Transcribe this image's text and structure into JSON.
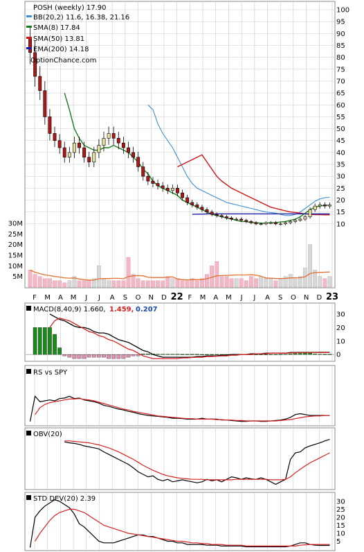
{
  "chart_data": [
    {
      "type": "candlestick",
      "title": "POSH (weekly) 17.90",
      "legend": [
        {
          "label": "BB(20,2) 11.6, 16.38, 21.16",
          "color": "#3a8fd6"
        },
        {
          "label": "SMA(8) 17.84",
          "color": "#1a7a1a"
        },
        {
          "label": "SMA(50) 13.81",
          "color": "#cc1111"
        },
        {
          "label": "EMA(200) 14.18",
          "color": "#1a1aa8"
        }
      ],
      "watermark": "OptionChance.com",
      "ylim": [
        5,
        100
      ],
      "y_ticks": [
        10,
        15,
        20,
        25,
        30,
        35,
        40,
        45,
        50,
        55,
        60,
        65,
        70,
        75,
        80,
        85,
        90,
        95,
        100
      ],
      "volume_ticks": [
        "30M",
        "25M",
        "20M",
        "15M",
        "10M",
        "5M"
      ],
      "volume_tick_values": [
        30,
        25,
        20,
        15,
        10,
        5
      ],
      "x_tick_labels": [
        "F",
        "M",
        "A",
        "M",
        "J",
        "J",
        "A",
        "S",
        "O",
        "N",
        "D",
        "22",
        "F",
        "M",
        "A",
        "M",
        "J",
        "J",
        "A",
        "S",
        "O",
        "N",
        "D",
        "23"
      ],
      "close": [
        82,
        72,
        66,
        55,
        48,
        45,
        42,
        38,
        40,
        44,
        42,
        38,
        36,
        40,
        43,
        46,
        48,
        46,
        44,
        42,
        40,
        38,
        34,
        30,
        28,
        27,
        26,
        25,
        24,
        25,
        23,
        21,
        19,
        18,
        17,
        16,
        15,
        14,
        13.5,
        13,
        12.5,
        12,
        12,
        11.5,
        11,
        10.5,
        10,
        10,
        10.5,
        10.5,
        10,
        10,
        10.5,
        11,
        11.5,
        12,
        13,
        16,
        17.5,
        18,
        17.5,
        17.9
      ],
      "series": [
        {
          "name": "BB(20,2)",
          "values": [
            null,
            null,
            null,
            null,
            null,
            null,
            null,
            null,
            null,
            null,
            null,
            null,
            null,
            null,
            null,
            null,
            null,
            null,
            null,
            null,
            null,
            null,
            null,
            null,
            60,
            58,
            52,
            48,
            45,
            42,
            38,
            34,
            30,
            27,
            25,
            24,
            23,
            22,
            21,
            20,
            19,
            18.5,
            18,
            17.5,
            17,
            16.5,
            16,
            15.5,
            15,
            14.8,
            14.5,
            14,
            13.5,
            13.5,
            14,
            15,
            16.5,
            18,
            19.5,
            20.5,
            21,
            21.16
          ]
        },
        {
          "name": "SMA(8)",
          "values": [
            null,
            null,
            null,
            null,
            null,
            null,
            null,
            65,
            58,
            50,
            46,
            43,
            42,
            41,
            41,
            42,
            42,
            43,
            42,
            41,
            40,
            38,
            36,
            33,
            31,
            28,
            26,
            25,
            24,
            23,
            22,
            20,
            19,
            18,
            17,
            16,
            15,
            14,
            13.5,
            13,
            12.5,
            12,
            11.5,
            11,
            11,
            10.5,
            10.5,
            10.3,
            10.3,
            10.5,
            10.5,
            10.8,
            11,
            11.5,
            12,
            13,
            14.5,
            16,
            17,
            17.5,
            17.8,
            17.84
          ]
        },
        {
          "name": "SMA(50)",
          "values": [
            null,
            null,
            null,
            null,
            null,
            null,
            null,
            null,
            null,
            null,
            null,
            null,
            null,
            null,
            null,
            null,
            null,
            null,
            null,
            null,
            null,
            null,
            null,
            null,
            null,
            null,
            null,
            null,
            null,
            null,
            34,
            35,
            36,
            37,
            38,
            39,
            36,
            33,
            30,
            28,
            26.5,
            25,
            24,
            23,
            22,
            21,
            20,
            19,
            18,
            17,
            16.5,
            16,
            15.5,
            15,
            14.8,
            14.5,
            14.2,
            14,
            13.9,
            13.85,
            13.8,
            13.81
          ]
        },
        {
          "name": "EMA(200)",
          "values": [
            null,
            null,
            null,
            null,
            null,
            null,
            null,
            null,
            null,
            null,
            null,
            null,
            null,
            null,
            null,
            null,
            null,
            null,
            null,
            null,
            null,
            null,
            null,
            null,
            null,
            null,
            null,
            null,
            null,
            null,
            null,
            null,
            null,
            14,
            14.1,
            14.1,
            14.2,
            14.2,
            14.2,
            14.2,
            14.2,
            14.2,
            14.2,
            14.2,
            14.2,
            14.2,
            14.2,
            14.2,
            14.2,
            14.2,
            14.2,
            14.2,
            14.2,
            14.2,
            14.2,
            14.2,
            14.2,
            14.18,
            14.18,
            14.18,
            14.18,
            14.18
          ]
        }
      ],
      "volume": [
        8,
        6,
        5,
        4,
        4,
        3,
        3,
        2,
        3,
        5,
        3,
        3,
        3,
        4,
        10,
        4,
        3,
        3,
        3,
        3,
        14,
        6,
        4,
        3,
        3,
        3,
        3,
        3,
        5,
        4,
        4,
        3,
        3,
        4,
        3,
        4,
        6,
        10,
        12,
        5,
        5,
        4,
        4,
        4,
        3,
        5,
        4,
        5,
        4,
        4,
        3,
        4,
        5,
        6,
        4,
        5,
        9,
        20,
        8,
        5,
        4,
        5
      ]
    },
    {
      "type": "bar",
      "title": "MACD(8,40,9) 1.660,",
      "values_labels": [
        "1.459,",
        "0.207"
      ],
      "value_colors": [
        "#d62020",
        "#1a4aa8"
      ],
      "ylim": [
        -4,
        33
      ],
      "y_ticks": [
        30,
        20,
        10,
        0
      ],
      "series": [
        {
          "name": "MACD",
          "values": [
            null,
            null,
            null,
            null,
            30,
            28,
            26,
            25,
            23,
            21,
            20,
            20,
            19,
            17,
            16,
            16,
            15,
            13,
            11,
            10,
            9,
            7,
            5,
            3,
            2,
            0,
            -1,
            -2,
            -2,
            -2,
            -2,
            -2,
            -2,
            -2,
            -1.5,
            -1.5,
            -1,
            -1,
            -1,
            -0.5,
            -0.5,
            0,
            0,
            0,
            0,
            0.5,
            0.5,
            0.5,
            1,
            1,
            1,
            1,
            1,
            1.5,
            1.5,
            1.6,
            1.6,
            1.6,
            1.6,
            1.66,
            1.66,
            1.66
          ]
        },
        {
          "name": "Signal",
          "values": [
            null,
            null,
            null,
            null,
            20,
            25,
            27,
            26,
            25,
            23,
            21,
            19,
            17,
            16,
            14,
            13,
            11,
            10,
            8,
            6,
            4,
            3,
            1,
            -1,
            -2,
            -3,
            -3,
            -3,
            -3,
            -3,
            -3,
            -2.5,
            -2.5,
            -2.2,
            -2,
            -2,
            -1.5,
            -1.5,
            -1.2,
            -1,
            -1,
            -0.5,
            -0.5,
            0,
            0,
            0,
            0.5,
            0.5,
            0.5,
            1,
            1,
            1,
            1,
            1.2,
            1.3,
            1.4,
            1.4,
            1.45,
            1.46,
            1.46,
            1.459,
            1.459
          ]
        },
        {
          "name": "Histogram",
          "values": [
            null,
            20,
            20,
            20,
            20,
            15,
            5,
            -1,
            -2,
            -3,
            -3,
            -3,
            -2,
            -2,
            -2,
            -2,
            -3,
            -3,
            -3,
            -3,
            -2,
            -1,
            -1,
            0.5,
            0.5,
            0.5,
            0.3,
            0.3,
            0.3,
            0.3,
            0.3,
            0.2,
            0.2,
            0.2,
            0.2,
            0.1,
            0.1,
            0.1,
            0.1,
            0.1,
            0.1,
            0.1,
            0.1,
            0.1,
            0.1,
            0.1,
            0.1,
            0.1,
            0.1,
            0.1,
            0.1,
            0.2,
            0.3,
            0.5,
            0.7,
            0.9,
            1,
            1,
            0.5,
            0.3,
            0.2,
            0.207
          ]
        }
      ]
    },
    {
      "type": "line",
      "title": "RS vs SPY",
      "series": [
        {
          "name": "RS",
          "values": [
            0.05,
            0.6,
            0.48,
            0.5,
            0.52,
            0.5,
            0.55,
            0.56,
            0.6,
            0.55,
            0.56,
            0.52,
            0.5,
            0.48,
            0.45,
            0.4,
            0.38,
            0.35,
            0.32,
            0.3,
            0.27,
            0.25,
            0.22,
            0.2,
            0.18,
            0.17,
            0.16,
            0.15,
            0.14,
            0.12,
            0.12,
            0.11,
            0.1,
            0.1,
            0.1,
            0.12,
            0.1,
            0.1,
            0.1,
            0.08,
            0.08,
            0.07,
            0.06,
            0.05,
            0.05,
            0.06,
            0.06,
            0.05,
            0.05,
            0.06,
            0.07,
            0.08,
            0.1,
            0.14,
            0.2,
            0.22,
            0.2,
            0.18,
            0.18,
            0.18,
            0.18,
            0.18
          ]
        },
        {
          "name": "RS average",
          "values": [
            null,
            0.2,
            0.35,
            0.42,
            0.46,
            0.48,
            0.5,
            0.52,
            0.54,
            0.54,
            0.55,
            0.53,
            0.52,
            0.5,
            0.47,
            0.44,
            0.41,
            0.38,
            0.35,
            0.32,
            0.3,
            0.27,
            0.25,
            0.23,
            0.21,
            0.19,
            0.17,
            0.16,
            0.15,
            0.14,
            0.13,
            0.12,
            0.11,
            0.11,
            0.1,
            0.1,
            0.1,
            0.1,
            0.09,
            0.09,
            0.08,
            0.08,
            0.07,
            0.07,
            0.06,
            0.06,
            0.06,
            0.06,
            0.06,
            0.06,
            0.06,
            0.07,
            0.08,
            0.09,
            0.11,
            0.13,
            0.15,
            0.16,
            0.17,
            0.17,
            0.18,
            0.18
          ]
        }
      ]
    },
    {
      "type": "line",
      "title": "OBV(20)",
      "series": [
        {
          "name": "OBV",
          "values": [
            null,
            null,
            null,
            null,
            null,
            null,
            null,
            0.9,
            0.88,
            0.87,
            0.85,
            0.82,
            0.8,
            0.78,
            0.76,
            0.7,
            0.65,
            0.6,
            0.55,
            0.5,
            0.45,
            0.38,
            0.3,
            0.25,
            0.2,
            0.22,
            0.15,
            0.12,
            0.15,
            0.1,
            0.12,
            0.14,
            0.12,
            0.1,
            0.08,
            0.1,
            0.15,
            0.12,
            0.14,
            0.1,
            0.15,
            0.2,
            0.18,
            0.15,
            0.18,
            0.16,
            0.15,
            0.18,
            0.15,
            0.1,
            0.05,
            0.1,
            0.15,
            0.55,
            0.68,
            0.7,
            0.78,
            0.82,
            0.85,
            0.88,
            0.92,
            0.95
          ]
        },
        {
          "name": "OBV average",
          "values": [
            null,
            null,
            null,
            null,
            null,
            null,
            null,
            0.92,
            0.92,
            0.91,
            0.9,
            0.89,
            0.88,
            0.86,
            0.84,
            0.81,
            0.78,
            0.74,
            0.7,
            0.65,
            0.6,
            0.55,
            0.49,
            0.43,
            0.38,
            0.33,
            0.29,
            0.25,
            0.22,
            0.2,
            0.18,
            0.17,
            0.16,
            0.15,
            0.15,
            0.15,
            0.14,
            0.14,
            0.14,
            0.14,
            0.14,
            0.14,
            0.15,
            0.15,
            0.15,
            0.15,
            0.15,
            0.15,
            0.15,
            0.14,
            0.14,
            0.14,
            0.15,
            0.2,
            0.28,
            0.35,
            0.42,
            0.48,
            0.53,
            0.58,
            0.63,
            0.68
          ]
        }
      ]
    },
    {
      "type": "line",
      "title": "STD DEV(20) 2.39",
      "ylim": [
        0,
        33
      ],
      "y_ticks": [
        30,
        25,
        20,
        15,
        10,
        5
      ],
      "series": [
        {
          "name": "STD DEV",
          "values": [
            1,
            20,
            24,
            27,
            29,
            31,
            30,
            28,
            26,
            22,
            16,
            14,
            11,
            8,
            5,
            4,
            4,
            4,
            5,
            6,
            7,
            8,
            9,
            9,
            8,
            8,
            7,
            6,
            5,
            5,
            4,
            4,
            3,
            3,
            3,
            3,
            2.5,
            2.5,
            2.5,
            2,
            2,
            2,
            2,
            2,
            1.5,
            1.5,
            1.5,
            1.5,
            1.5,
            1.5,
            1.5,
            1.5,
            1.5,
            2,
            3,
            4,
            4,
            3,
            2.5,
            2.4,
            2.4,
            2.39
          ]
        },
        {
          "name": "STD DEV average",
          "values": [
            null,
            5,
            10,
            14,
            18,
            21,
            23,
            24,
            25,
            25,
            24,
            23,
            21,
            19,
            17,
            15,
            14,
            13,
            12,
            11,
            10,
            9.5,
            9,
            8.5,
            8,
            7.5,
            7,
            6.5,
            6,
            5.5,
            5,
            5,
            4.5,
            4,
            4,
            3.5,
            3.5,
            3,
            3,
            3,
            2.5,
            2.5,
            2.5,
            2.5,
            2,
            2,
            2,
            2,
            2,
            2,
            2,
            2,
            2,
            2,
            2,
            2.5,
            2.8,
            3,
            3,
            3,
            3,
            3
          ]
        }
      ]
    }
  ],
  "colors": {
    "grid": "#c8c8c8",
    "candle_up": "#e8e0a0",
    "candle_down": "#b01818",
    "volume_down": "#f2b8c6",
    "volume_up": "#d8d8d8",
    "volume_avg": "#e07030",
    "macd_hist_up": "#1a8a1a",
    "macd_hist_down": "#e090b0",
    "avg_line": "#d62020",
    "line": "#000000"
  }
}
